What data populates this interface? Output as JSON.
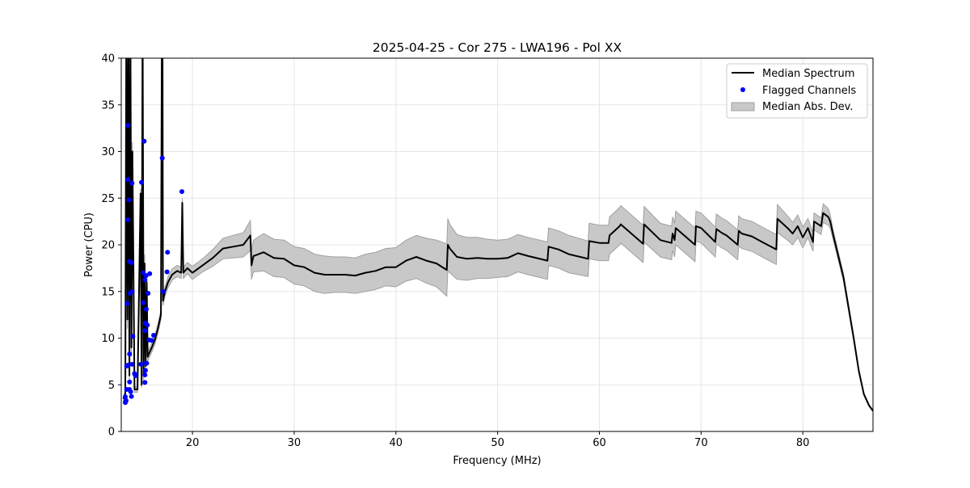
{
  "chart_data": {
    "type": "line",
    "title": "2025-04-25 - Cor 275 - LWA196 - Pol XX",
    "xlabel": "Frequency (MHz)",
    "ylabel": "Power (CPU)",
    "xlim": [
      13.0,
      86.9
    ],
    "ylim": [
      0,
      40
    ],
    "xticks": [
      20,
      30,
      40,
      50,
      60,
      70,
      80
    ],
    "yticks": [
      0,
      5,
      10,
      15,
      20,
      25,
      30,
      35,
      40
    ],
    "xtick_labels": [
      "20",
      "30",
      "40",
      "50",
      "60",
      "70",
      "80"
    ],
    "ytick_labels": [
      "0",
      "5",
      "10",
      "15",
      "20",
      "25",
      "30",
      "35",
      "40"
    ],
    "grid": true,
    "legend_position": "top-right",
    "legend": [
      "Median Spectrum",
      "Flagged Channels",
      "Median Abs. Dev."
    ],
    "colors": {
      "median": "#000000",
      "flagged": "#0000ff",
      "mad": "#c8c8c8",
      "mad_edge": "#a0a0a0"
    },
    "series": [
      {
        "name": "Median Spectrum",
        "points_freq_median_mad": [
          [
            13.2,
            3.5,
            0.3
          ],
          [
            13.4,
            4,
            0.3
          ],
          [
            13.5,
            45,
            1
          ],
          [
            13.6,
            12,
            1
          ],
          [
            13.7,
            45,
            1
          ],
          [
            13.8,
            6,
            1
          ],
          [
            13.9,
            45,
            1
          ],
          [
            14.0,
            9,
            1
          ],
          [
            14.1,
            30,
            1
          ],
          [
            14.3,
            4.5,
            0.3
          ],
          [
            14.6,
            4.5,
            0.3
          ],
          [
            14.9,
            25.5,
            0.5
          ],
          [
            15.0,
            5,
            0.3
          ],
          [
            15.1,
            45,
            1
          ],
          [
            15.2,
            6,
            1
          ],
          [
            15.3,
            18,
            1
          ],
          [
            15.4,
            7,
            1
          ],
          [
            15.5,
            16,
            1
          ],
          [
            15.6,
            8,
            0.5
          ],
          [
            15.8,
            8.5,
            0.5
          ],
          [
            16.0,
            9,
            0.5
          ],
          [
            16.3,
            9.8,
            0.5
          ],
          [
            16.6,
            11,
            0.5
          ],
          [
            16.9,
            12.5,
            0.5
          ],
          [
            17.0,
            45,
            1
          ],
          [
            17.05,
            45,
            1
          ],
          [
            17.1,
            14,
            0.5
          ],
          [
            17.3,
            15,
            0.5
          ],
          [
            17.6,
            16,
            0.6
          ],
          [
            18.0,
            16.8,
            0.6
          ],
          [
            18.5,
            17.2,
            0.6
          ],
          [
            18.9,
            17,
            0.6
          ],
          [
            19.0,
            24.5,
            0.5
          ],
          [
            19.1,
            17,
            0.6
          ],
          [
            19.5,
            17.5,
            0.6
          ],
          [
            20,
            17,
            0.7
          ],
          [
            21,
            17.8,
            0.7
          ],
          [
            22,
            18.6,
            0.9
          ],
          [
            23,
            19.6,
            1.1
          ],
          [
            24,
            19.8,
            1.2
          ],
          [
            25,
            20,
            1.3
          ],
          [
            25.7,
            21,
            1.6
          ],
          [
            25.8,
            17.8,
            1.5
          ],
          [
            26,
            18.8,
            1.7
          ],
          [
            27,
            19.2,
            2.0
          ],
          [
            28,
            18.6,
            2.0
          ],
          [
            29,
            18.5,
            2.0
          ],
          [
            30,
            17.8,
            2.0
          ],
          [
            31,
            17.6,
            2.0
          ],
          [
            32,
            17,
            2.0
          ],
          [
            33,
            16.8,
            2.0
          ],
          [
            34,
            16.8,
            1.9
          ],
          [
            35,
            16.8,
            1.9
          ],
          [
            36,
            16.7,
            1.9
          ],
          [
            37,
            17,
            2.0
          ],
          [
            38,
            17.2,
            2.0
          ],
          [
            39,
            17.6,
            2.0
          ],
          [
            40,
            17.6,
            2.1
          ],
          [
            41,
            18.3,
            2.2
          ],
          [
            42,
            18.7,
            2.3
          ],
          [
            43,
            18.3,
            2.4
          ],
          [
            44,
            18,
            2.5
          ],
          [
            45,
            17.3,
            2.8
          ],
          [
            45.1,
            20,
            2.8
          ],
          [
            45.3,
            19.6,
            2.6
          ],
          [
            46,
            18.7,
            2.4
          ],
          [
            47,
            18.5,
            2.3
          ],
          [
            48,
            18.6,
            2.2
          ],
          [
            49,
            18.5,
            2.1
          ],
          [
            50,
            18.5,
            2.0
          ],
          [
            51,
            18.6,
            2.0
          ],
          [
            52,
            19.1,
            2.0
          ],
          [
            53,
            18.8,
            2.0
          ],
          [
            54.9,
            18.3,
            2.0
          ],
          [
            55,
            19.8,
            2.0
          ],
          [
            56,
            19.5,
            2.0
          ],
          [
            57,
            19,
            2.0
          ],
          [
            58.9,
            18.5,
            1.9
          ],
          [
            59,
            20.4,
            1.9
          ],
          [
            60,
            20.2,
            1.9
          ],
          [
            60.9,
            20.2,
            1.9
          ],
          [
            61,
            21,
            2.0
          ],
          [
            62,
            22,
            2.0
          ],
          [
            62.1,
            22.2,
            2.0
          ],
          [
            64.3,
            20.1,
            2.0
          ],
          [
            64.4,
            22.2,
            1.9
          ],
          [
            66,
            20.5,
            1.8
          ],
          [
            67.1,
            20.2,
            1.8
          ],
          [
            67.2,
            21.2,
            1.8
          ],
          [
            67.4,
            20.5,
            1.8
          ],
          [
            67.5,
            21.8,
            1.8
          ],
          [
            69.4,
            20,
            1.8
          ],
          [
            69.5,
            22,
            1.6
          ],
          [
            70,
            21.8,
            1.6
          ],
          [
            71.4,
            20.3,
            1.6
          ],
          [
            71.5,
            21.7,
            1.6
          ],
          [
            72,
            21.3,
            1.6
          ],
          [
            72.5,
            21,
            1.6
          ],
          [
            73.6,
            20,
            1.6
          ],
          [
            73.7,
            21.5,
            1.6
          ],
          [
            74,
            21.2,
            1.6
          ],
          [
            75,
            20.9,
            1.6
          ],
          [
            76,
            20.3,
            1.6
          ],
          [
            77.4,
            19.5,
            1.6
          ],
          [
            77.5,
            22.8,
            1.5
          ],
          [
            78.5,
            21.8,
            1.3
          ],
          [
            79,
            21.2,
            1.2
          ],
          [
            79.5,
            22,
            1.2
          ],
          [
            80,
            20.8,
            1.1
          ],
          [
            80.5,
            21.8,
            1.0
          ],
          [
            81,
            20.3,
            1.0
          ],
          [
            81.1,
            22.5,
            0.9
          ],
          [
            81.8,
            22,
            0.9
          ],
          [
            82,
            23.4,
            1.0
          ],
          [
            82.5,
            23,
            0.9
          ],
          [
            82.7,
            22.5,
            0.7
          ],
          [
            83,
            21,
            0.5
          ],
          [
            84,
            16.5,
            0.4
          ],
          [
            85,
            10,
            0.3
          ],
          [
            85.5,
            6.5,
            0.2
          ],
          [
            86,
            4,
            0.1
          ],
          [
            86.5,
            2.8,
            0.1
          ],
          [
            86.9,
            2.2,
            0.1
          ]
        ]
      },
      {
        "name": "Flagged Channels",
        "points": [
          [
            13.66,
            32.8
          ],
          [
            15.25,
            31.1
          ],
          [
            17.03,
            29.3
          ],
          [
            13.66,
            27.0
          ],
          [
            14.06,
            26.6
          ],
          [
            14.99,
            26.7
          ],
          [
            13.74,
            24.8
          ],
          [
            18.96,
            25.7
          ],
          [
            13.66,
            22.7
          ],
          [
            13.8,
            18.2
          ],
          [
            14.0,
            18.1
          ],
          [
            17.55,
            19.2
          ],
          [
            17.5,
            17.1
          ],
          [
            15.17,
            17.0
          ],
          [
            15.44,
            16.7
          ],
          [
            15.33,
            16.25
          ],
          [
            15.8,
            16.9
          ],
          [
            13.85,
            14.8
          ],
          [
            14.06,
            15.0
          ],
          [
            17.1,
            15.0
          ],
          [
            15.64,
            14.8
          ],
          [
            13.58,
            13.7
          ],
          [
            15.17,
            13.8
          ],
          [
            15.46,
            13.1
          ],
          [
            15.38,
            11.6
          ],
          [
            15.57,
            11.4
          ],
          [
            15.33,
            10.8
          ],
          [
            14.14,
            10.2
          ],
          [
            16.18,
            10.3
          ],
          [
            15.73,
            9.8
          ],
          [
            16.0,
            9.75
          ],
          [
            13.82,
            8.3
          ],
          [
            13.53,
            7.0
          ],
          [
            13.66,
            7.1
          ],
          [
            14.06,
            7.2
          ],
          [
            14.93,
            7.2
          ],
          [
            15.46,
            7.3
          ],
          [
            15.5,
            7.3
          ],
          [
            15.38,
            6.55
          ],
          [
            14.3,
            6.2
          ],
          [
            14.4,
            5.97
          ],
          [
            13.82,
            5.3
          ],
          [
            15.33,
            6.06
          ],
          [
            15.33,
            5.25
          ],
          [
            13.53,
            4.5
          ],
          [
            13.8,
            4.5
          ],
          [
            13.93,
            4.25
          ],
          [
            14.0,
            3.75
          ],
          [
            13.4,
            3.7
          ],
          [
            13.48,
            3.3
          ],
          [
            13.4,
            3.1
          ]
        ]
      }
    ]
  }
}
